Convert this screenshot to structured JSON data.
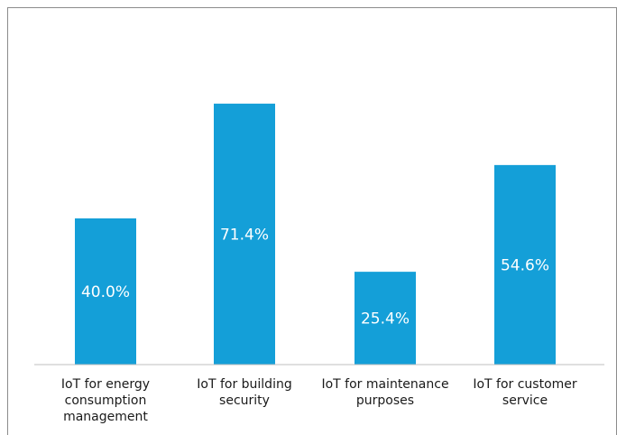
{
  "chart_data": {
    "type": "bar",
    "categories": [
      [
        "IoT for energy",
        "consumption",
        "management"
      ],
      [
        "IoT for building",
        "security"
      ],
      [
        "IoT for maintenance",
        "purposes"
      ],
      [
        "IoT for customer",
        "service"
      ]
    ],
    "values": [
      40.0,
      71.4,
      25.4,
      54.6
    ],
    "data_labels": [
      "40.0%",
      "71.4%",
      "25.4%",
      "54.6%"
    ],
    "bar_color": "#149fd8",
    "title": "",
    "xlabel": "",
    "ylabel": "",
    "ylim": [
      0,
      80
    ],
    "grid": false,
    "legend": "none"
  }
}
